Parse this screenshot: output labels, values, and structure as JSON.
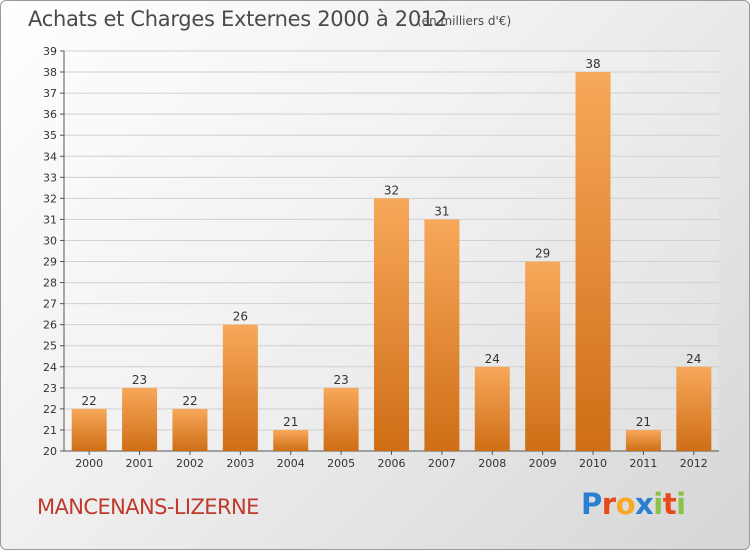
{
  "header": {
    "title": "Achats et Charges Externes 2000 à 2012",
    "subtitle": "(en milliers d'€)"
  },
  "footer": {
    "commune": "MANCENANS-LIZERNE",
    "logo_letters": [
      {
        "char": "P",
        "color": "#2a7fd0"
      },
      {
        "char": "r",
        "color": "#e64a19"
      },
      {
        "char": "o",
        "color": "#f9a825"
      },
      {
        "char": "x",
        "color": "#2a7fd0"
      },
      {
        "char": "i",
        "color": "#8bc34a"
      },
      {
        "char": "t",
        "color": "#e64a19"
      },
      {
        "char": "i",
        "color": "#8bc34a"
      }
    ]
  },
  "colors": {
    "bar_light": "#f7a85a",
    "bar_dark": "#cf6e16",
    "grid": "#d0d0d0",
    "axis": "#555555",
    "text": "#333333"
  },
  "chart_data": {
    "type": "bar",
    "categories": [
      "2000",
      "2001",
      "2002",
      "2003",
      "2004",
      "2005",
      "2006",
      "2007",
      "2008",
      "2009",
      "2010",
      "2011",
      "2012"
    ],
    "values": [
      22,
      23,
      22,
      26,
      21,
      23,
      32,
      31,
      24,
      29,
      38,
      21,
      24
    ],
    "title": "Achats et Charges Externes 2000 à 2012",
    "xlabel": "",
    "ylabel": "",
    "ylim": [
      20,
      39
    ],
    "yticks": [
      20,
      21,
      22,
      23,
      24,
      25,
      26,
      27,
      28,
      29,
      30,
      31,
      32,
      33,
      34,
      35,
      36,
      37,
      38,
      39
    ],
    "grid": true,
    "data_labels": true
  }
}
